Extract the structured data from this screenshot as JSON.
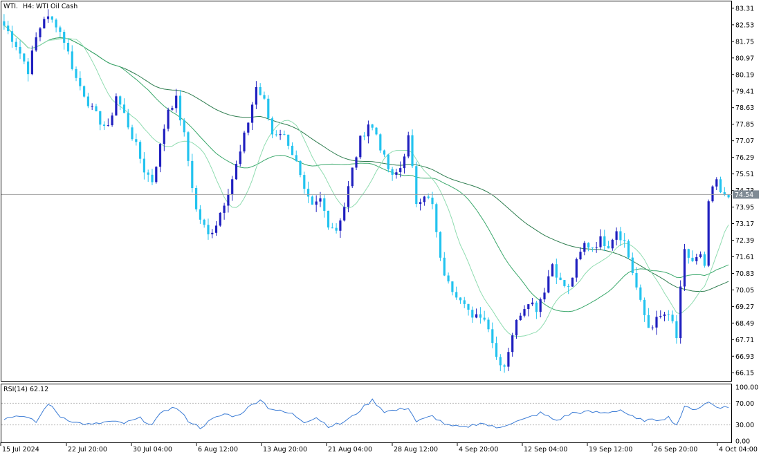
{
  "header": {
    "symbol": "WTI.",
    "timeframe": "H4:",
    "instrument": "WTI Oil Cash"
  },
  "rsi_panel": {
    "label": "RSI(14) 62.12",
    "levels": [
      "100.00",
      "70.00",
      "30.00",
      "0.00"
    ]
  },
  "current_price": "74.54",
  "colors": {
    "bull_body": "#1f1fbf",
    "bear_body": "#22c3ef",
    "ma_slow": "#2e7d4f",
    "ma_mid": "#3aa86b",
    "ma_fast": "#8fdcb0",
    "rsi_line": "#3a7bd5",
    "price_line": "#a0a0a0",
    "label_bg": "#7f8a94"
  },
  "chart_data": {
    "type": "candlestick",
    "ylim": [
      65.8,
      83.6
    ],
    "y_tick_labels": [
      "83.31",
      "82.53",
      "81.75",
      "80.97",
      "80.19",
      "79.41",
      "78.63",
      "77.85",
      "77.07",
      "76.29",
      "75.51",
      "74.73",
      "73.95",
      "73.17",
      "72.39",
      "71.61",
      "70.83",
      "70.05",
      "69.27",
      "68.49",
      "67.71",
      "66.93",
      "66.15"
    ],
    "x_tick_labels": [
      "15 Jul 2024",
      "22 Jul 20:00",
      "30 Jul 04:00",
      "6 Aug 12:00",
      "13 Aug 20:00",
      "21 Aug 04:00",
      "28 Aug 12:00",
      "4 Sep 20:00",
      "12 Sep 04:00",
      "19 Sep 12:00",
      "26 Sep 20:00",
      "4 Oct 04:00"
    ],
    "close_path": [
      [
        0,
        82.5
      ],
      [
        3,
        81.6
      ],
      [
        6,
        80.4
      ],
      [
        8,
        81.9
      ],
      [
        10,
        82.9
      ],
      [
        13,
        82.6
      ],
      [
        15,
        81.8
      ],
      [
        18,
        80.0
      ],
      [
        20,
        79.3
      ],
      [
        22,
        78.5
      ],
      [
        24,
        78.0
      ],
      [
        26,
        77.6
      ],
      [
        28,
        79.2
      ],
      [
        30,
        78.3
      ],
      [
        33,
        76.8
      ],
      [
        35,
        75.7
      ],
      [
        37,
        75.2
      ],
      [
        39,
        76.8
      ],
      [
        41,
        78.6
      ],
      [
        43,
        79.0
      ],
      [
        45,
        77.3
      ],
      [
        48,
        73.8
      ],
      [
        51,
        72.6
      ],
      [
        53,
        73.2
      ],
      [
        55,
        74.2
      ],
      [
        57,
        75.3
      ],
      [
        59,
        76.5
      ],
      [
        61,
        78.0
      ],
      [
        63,
        79.6
      ],
      [
        65,
        78.9
      ],
      [
        67,
        77.4
      ],
      [
        69,
        77.5
      ],
      [
        71,
        77.0
      ],
      [
        73,
        76.0
      ],
      [
        75,
        74.6
      ],
      [
        77,
        73.9
      ],
      [
        79,
        74.3
      ],
      [
        81,
        73.2
      ],
      [
        83,
        72.9
      ],
      [
        85,
        74.0
      ],
      [
        87,
        75.7
      ],
      [
        89,
        77.1
      ],
      [
        91,
        77.9
      ],
      [
        93,
        77.4
      ],
      [
        95,
        76.2
      ],
      [
        97,
        75.3
      ],
      [
        99,
        75.8
      ],
      [
        101,
        77.2
      ],
      [
        103,
        74.2
      ],
      [
        105,
        74.6
      ],
      [
        107,
        74.0
      ],
      [
        109,
        71.4
      ],
      [
        111,
        70.3
      ],
      [
        113,
        69.9
      ],
      [
        115,
        69.6
      ],
      [
        117,
        68.6
      ],
      [
        119,
        68.9
      ],
      [
        121,
        68.4
      ],
      [
        123,
        66.9
      ],
      [
        125,
        66.5
      ],
      [
        127,
        68.0
      ],
      [
        129,
        69.0
      ],
      [
        131,
        69.6
      ],
      [
        133,
        69.2
      ],
      [
        135,
        70.1
      ],
      [
        137,
        71.3
      ],
      [
        139,
        70.4
      ],
      [
        141,
        70.1
      ],
      [
        143,
        71.3
      ],
      [
        145,
        72.2
      ],
      [
        147,
        72.1
      ],
      [
        149,
        72.4
      ],
      [
        151,
        72.2
      ],
      [
        153,
        72.9
      ],
      [
        155,
        72.3
      ],
      [
        157,
        70.9
      ],
      [
        159,
        69.4
      ],
      [
        161,
        68.3
      ],
      [
        163,
        68.6
      ],
      [
        165,
        68.9
      ],
      [
        167,
        68.5
      ],
      [
        168,
        67.8
      ],
      [
        169,
        70.0
      ],
      [
        170,
        71.8
      ],
      [
        172,
        71.4
      ],
      [
        174,
        71.6
      ],
      [
        175,
        71.0
      ],
      [
        176,
        74.2
      ],
      [
        178,
        75.2
      ],
      [
        179,
        74.5
      ],
      [
        181,
        74.6
      ]
    ],
    "rsi_path": [
      [
        0,
        42
      ],
      [
        4,
        48
      ],
      [
        8,
        35
      ],
      [
        11,
        70
      ],
      [
        14,
        46
      ],
      [
        18,
        34
      ],
      [
        22,
        30
      ],
      [
        26,
        36
      ],
      [
        30,
        33
      ],
      [
        34,
        42
      ],
      [
        37,
        30
      ],
      [
        40,
        58
      ],
      [
        43,
        62
      ],
      [
        46,
        38
      ],
      [
        49,
        25
      ],
      [
        52,
        40
      ],
      [
        55,
        50
      ],
      [
        58,
        46
      ],
      [
        61,
        62
      ],
      [
        64,
        78
      ],
      [
        66,
        62
      ],
      [
        69,
        55
      ],
      [
        72,
        50
      ],
      [
        75,
        36
      ],
      [
        78,
        44
      ],
      [
        81,
        28
      ],
      [
        84,
        32
      ],
      [
        87,
        45
      ],
      [
        90,
        64
      ],
      [
        92,
        76
      ],
      [
        95,
        55
      ],
      [
        98,
        57
      ],
      [
        101,
        62
      ],
      [
        103,
        36
      ],
      [
        107,
        46
      ],
      [
        111,
        28
      ],
      [
        115,
        25
      ],
      [
        119,
        34
      ],
      [
        123,
        24
      ],
      [
        126,
        32
      ],
      [
        130,
        40
      ],
      [
        134,
        52
      ],
      [
        138,
        38
      ],
      [
        142,
        52
      ],
      [
        146,
        54
      ],
      [
        150,
        52
      ],
      [
        154,
        58
      ],
      [
        158,
        40
      ],
      [
        162,
        38
      ],
      [
        166,
        44
      ],
      [
        168,
        30
      ],
      [
        170,
        62
      ],
      [
        173,
        60
      ],
      [
        176,
        72
      ],
      [
        178,
        64
      ],
      [
        181,
        62
      ]
    ]
  }
}
